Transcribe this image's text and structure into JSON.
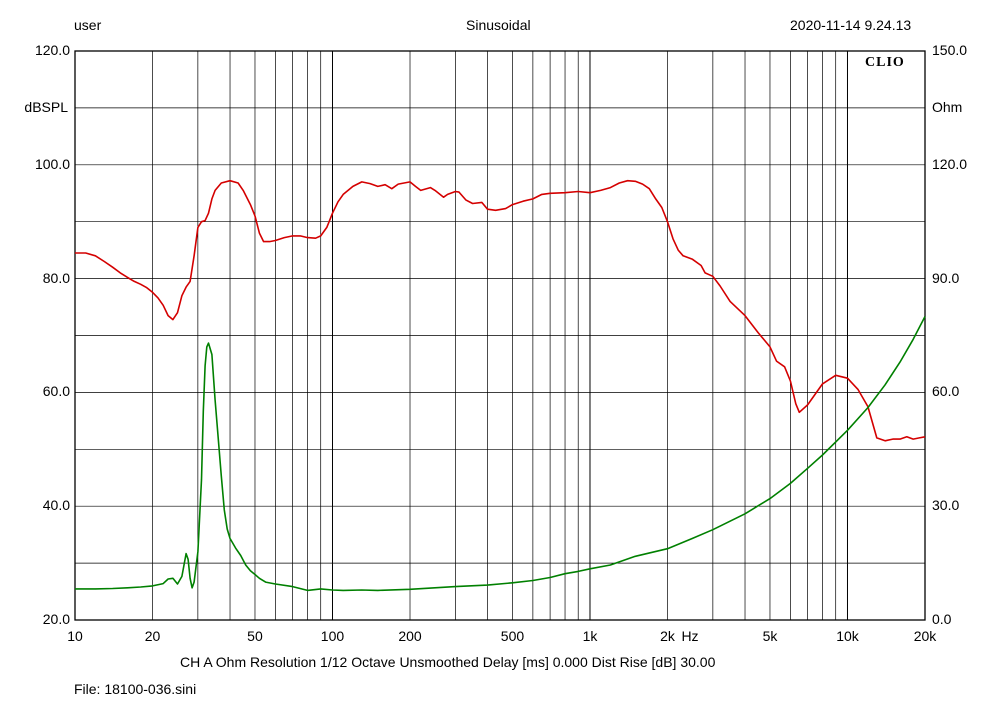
{
  "header": {
    "user": "user",
    "mode": "Sinusoidal",
    "timestamp": "2020-11-14 9.24.13"
  },
  "logo": "CLIO",
  "footer": {
    "info": "CH A   Ohm   Resolution 1/12 Octave   Unsmoothed   Delay [ms] 0.000   Dist Rise [dB] 30.00",
    "file": "File: 18100-036.sini"
  },
  "chart_data": {
    "type": "line",
    "x_scale": "log",
    "xlim": [
      10,
      20000
    ],
    "x_ticks": [
      {
        "v": 10,
        "label": "10"
      },
      {
        "v": 20,
        "label": "20"
      },
      {
        "v": 50,
        "label": "50"
      },
      {
        "v": 100,
        "label": "100"
      },
      {
        "v": 200,
        "label": "200"
      },
      {
        "v": 500,
        "label": "500"
      },
      {
        "v": 1000,
        "label": "1k"
      },
      {
        "v": 2000,
        "label": "2k"
      },
      {
        "v": 5000,
        "label": "5k"
      },
      {
        "v": 10000,
        "label": "10k"
      },
      {
        "v": 20000,
        "label": "20k"
      }
    ],
    "x_unit": "Hz",
    "y_left": {
      "unit": "dBSPL",
      "ylim": [
        20,
        120
      ],
      "ticks": [
        "120.0",
        "100.0",
        "80.0",
        "60.0",
        "40.0",
        "20.0"
      ]
    },
    "y_right": {
      "unit": "Ohm",
      "ylim": [
        0,
        150
      ],
      "ticks": [
        "150.0",
        "120.0",
        "90.0",
        "60.0",
        "30.0",
        "0.0"
      ]
    },
    "grid": true,
    "colors": {
      "spl": "#d40000",
      "impedance": "#008000"
    },
    "series": [
      {
        "axis": "left",
        "color": "#d40000",
        "points": [
          [
            10,
            84.5
          ],
          [
            11,
            84.5
          ],
          [
            12,
            84
          ],
          [
            13,
            83
          ],
          [
            14,
            82
          ],
          [
            15,
            81
          ],
          [
            16,
            80.2
          ],
          [
            17,
            79.5
          ],
          [
            18,
            79
          ],
          [
            19,
            78.4
          ],
          [
            20,
            77.6
          ],
          [
            21,
            76.6
          ],
          [
            22,
            75.3
          ],
          [
            23,
            73.5
          ],
          [
            24,
            72.8
          ],
          [
            25,
            74
          ],
          [
            26,
            77
          ],
          [
            27,
            78.5
          ],
          [
            28,
            79.5
          ],
          [
            29,
            84
          ],
          [
            30,
            89
          ],
          [
            31,
            90
          ],
          [
            32,
            90.2
          ],
          [
            33,
            91.5
          ],
          [
            34,
            94
          ],
          [
            35,
            95.5
          ],
          [
            37,
            96.8
          ],
          [
            40,
            97.2
          ],
          [
            43,
            96.8
          ],
          [
            45,
            95.5
          ],
          [
            48,
            93
          ],
          [
            50,
            91
          ],
          [
            52,
            88
          ],
          [
            54,
            86.5
          ],
          [
            57,
            86.5
          ],
          [
            60,
            86.7
          ],
          [
            65,
            87.2
          ],
          [
            70,
            87.5
          ],
          [
            75,
            87.5
          ],
          [
            80,
            87.2
          ],
          [
            86,
            87.1
          ],
          [
            90,
            87.5
          ],
          [
            95,
            89
          ],
          [
            100,
            91.5
          ],
          [
            105,
            93.5
          ],
          [
            110,
            94.8
          ],
          [
            120,
            96.2
          ],
          [
            130,
            97
          ],
          [
            140,
            96.7
          ],
          [
            150,
            96.2
          ],
          [
            160,
            96.5
          ],
          [
            170,
            95.8
          ],
          [
            180,
            96.6
          ],
          [
            200,
            97
          ],
          [
            210,
            96.2
          ],
          [
            220,
            95.5
          ],
          [
            240,
            96
          ],
          [
            250,
            95.5
          ],
          [
            270,
            94.3
          ],
          [
            280,
            94.8
          ],
          [
            300,
            95.3
          ],
          [
            310,
            95.2
          ],
          [
            330,
            93.8
          ],
          [
            350,
            93.2
          ],
          [
            380,
            93.4
          ],
          [
            400,
            92.2
          ],
          [
            430,
            92
          ],
          [
            470,
            92.3
          ],
          [
            500,
            93
          ],
          [
            550,
            93.6
          ],
          [
            600,
            94
          ],
          [
            650,
            94.8
          ],
          [
            700,
            95
          ],
          [
            800,
            95.1
          ],
          [
            900,
            95.3
          ],
          [
            1000,
            95.1
          ],
          [
            1100,
            95.5
          ],
          [
            1200,
            96
          ],
          [
            1300,
            96.8
          ],
          [
            1400,
            97.2
          ],
          [
            1500,
            97.1
          ],
          [
            1600,
            96.6
          ],
          [
            1700,
            95.8
          ],
          [
            1800,
            94
          ],
          [
            1900,
            92.5
          ],
          [
            2000,
            90
          ],
          [
            2100,
            87
          ],
          [
            2200,
            85
          ],
          [
            2300,
            84
          ],
          [
            2500,
            83.4
          ],
          [
            2700,
            82.3
          ],
          [
            2800,
            81
          ],
          [
            3000,
            80.4
          ],
          [
            3200,
            78.7
          ],
          [
            3500,
            76
          ],
          [
            4000,
            73.5
          ],
          [
            4500,
            70.5
          ],
          [
            5000,
            68
          ],
          [
            5300,
            65.5
          ],
          [
            5700,
            64.5
          ],
          [
            6000,
            62
          ],
          [
            6300,
            58
          ],
          [
            6500,
            56.5
          ],
          [
            7000,
            57.8
          ],
          [
            8000,
            61.5
          ],
          [
            9000,
            63
          ],
          [
            10000,
            62.5
          ],
          [
            11000,
            60.5
          ],
          [
            12000,
            57.5
          ],
          [
            13000,
            52
          ],
          [
            14000,
            51.5
          ],
          [
            15000,
            51.8
          ],
          [
            16000,
            51.8
          ],
          [
            17000,
            52.2
          ],
          [
            18000,
            51.8
          ],
          [
            19000,
            52
          ],
          [
            20000,
            52.2
          ]
        ]
      },
      {
        "axis": "right",
        "color": "#008000",
        "points": [
          [
            10,
            8.2
          ],
          [
            12,
            8.2
          ],
          [
            14,
            8.3
          ],
          [
            16,
            8.5
          ],
          [
            18,
            8.7
          ],
          [
            20,
            9
          ],
          [
            22,
            9.6
          ],
          [
            23,
            10.8
          ],
          [
            24,
            11
          ],
          [
            25,
            9.5
          ],
          [
            26,
            11.5
          ],
          [
            27,
            17.5
          ],
          [
            27.5,
            16
          ],
          [
            28,
            11
          ],
          [
            28.5,
            8.5
          ],
          [
            29,
            10
          ],
          [
            30,
            18
          ],
          [
            31,
            37
          ],
          [
            31.5,
            55
          ],
          [
            32,
            67
          ],
          [
            32.5,
            72
          ],
          [
            33,
            73
          ],
          [
            34,
            70
          ],
          [
            35,
            58
          ],
          [
            36,
            48
          ],
          [
            37,
            38
          ],
          [
            38,
            29
          ],
          [
            39,
            24
          ],
          [
            40,
            21.5
          ],
          [
            42,
            19
          ],
          [
            44,
            17
          ],
          [
            46,
            14.5
          ],
          [
            48,
            13
          ],
          [
            50,
            12
          ],
          [
            52,
            11
          ],
          [
            55,
            10
          ],
          [
            60,
            9.5
          ],
          [
            70,
            8.8
          ],
          [
            80,
            7.8
          ],
          [
            90,
            8.2
          ],
          [
            100,
            7.9
          ],
          [
            110,
            7.8
          ],
          [
            130,
            7.9
          ],
          [
            150,
            7.8
          ],
          [
            200,
            8.1
          ],
          [
            300,
            8.8
          ],
          [
            400,
            9.2
          ],
          [
            500,
            9.8
          ],
          [
            600,
            10.4
          ],
          [
            700,
            11.2
          ],
          [
            800,
            12.2
          ],
          [
            900,
            12.8
          ],
          [
            1000,
            13.5
          ],
          [
            1200,
            14.5
          ],
          [
            1500,
            16.8
          ],
          [
            2000,
            18.8
          ],
          [
            2500,
            21.5
          ],
          [
            3000,
            23.8
          ],
          [
            4000,
            28
          ],
          [
            5000,
            32
          ],
          [
            6000,
            36
          ],
          [
            7000,
            40
          ],
          [
            8000,
            43.5
          ],
          [
            10000,
            50
          ],
          [
            12000,
            56
          ],
          [
            14000,
            62
          ],
          [
            16000,
            68
          ],
          [
            18000,
            74
          ],
          [
            20000,
            80
          ]
        ]
      }
    ]
  }
}
